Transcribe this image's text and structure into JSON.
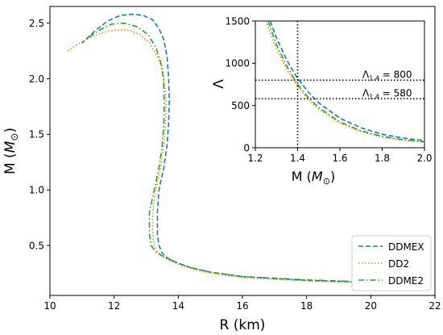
{
  "chart_data": [
    {
      "type": "line",
      "xlabel": "R (km)",
      "ylabel": "M (M⊙)",
      "ylabel_parts": {
        "prefix": "M (",
        "var": "M",
        "sub": "⊙",
        "suffix": ")"
      },
      "xlim": [
        10,
        22
      ],
      "ylim": [
        0.05,
        2.65
      ],
      "xticks": [
        10,
        12,
        14,
        16,
        18,
        20,
        22
      ],
      "yticks": [
        0.5,
        1.0,
        1.5,
        2.0,
        2.5
      ],
      "xtick_labels": [
        "10",
        "12",
        "14",
        "16",
        "18",
        "20",
        "22"
      ],
      "ytick_labels": [
        "0.5",
        "1.0",
        "1.5",
        "2.0",
        "2.5"
      ],
      "grid": false,
      "legend": {
        "placement": "bottom-right",
        "entries": [
          "DDMEX",
          "DD2",
          "DDME2"
        ]
      },
      "series": [
        {
          "name": "DDMEX",
          "color": "#1f77b4",
          "dash": "dashed",
          "x": [
            20.0,
            18.0,
            16.0,
            15.0,
            14.4,
            14.0,
            13.7,
            13.5,
            13.4,
            13.35,
            13.35,
            13.4,
            13.55,
            13.65,
            13.7,
            13.72,
            13.7,
            13.65,
            13.55,
            13.4,
            13.2,
            12.9,
            12.6,
            12.2,
            11.8,
            11.4,
            11.0
          ],
          "y": [
            0.17,
            0.185,
            0.22,
            0.26,
            0.3,
            0.34,
            0.38,
            0.43,
            0.5,
            0.6,
            0.8,
            1.0,
            1.2,
            1.4,
            1.6,
            1.8,
            2.0,
            2.2,
            2.35,
            2.45,
            2.53,
            2.57,
            2.58,
            2.57,
            2.52,
            2.43,
            2.32
          ]
        },
        {
          "name": "DD2",
          "color": "#ff7f0e",
          "dash": "dotted",
          "x": [
            20.0,
            18.0,
            16.0,
            15.0,
            14.4,
            14.0,
            13.6,
            13.35,
            13.25,
            13.2,
            13.2,
            13.3,
            13.45,
            13.55,
            13.6,
            13.62,
            13.58,
            13.5,
            13.35,
            13.1,
            12.8,
            12.4,
            12.0,
            11.6,
            11.2,
            10.8,
            10.55
          ],
          "y": [
            0.16,
            0.18,
            0.21,
            0.25,
            0.29,
            0.33,
            0.38,
            0.44,
            0.5,
            0.6,
            0.8,
            1.0,
            1.2,
            1.4,
            1.6,
            1.8,
            1.95,
            2.1,
            2.2,
            2.32,
            2.4,
            2.44,
            2.44,
            2.41,
            2.36,
            2.3,
            2.25
          ]
        },
        {
          "name": "DDME2",
          "color": "#2ca02c",
          "dash": "dashdot",
          "x": [
            20.0,
            18.0,
            16.0,
            15.0,
            14.4,
            14.0,
            13.6,
            13.3,
            13.15,
            13.1,
            13.1,
            13.25,
            13.4,
            13.5,
            13.55,
            13.56,
            13.54,
            13.45,
            13.3,
            13.05,
            12.7,
            12.3,
            11.9,
            11.5,
            11.1
          ],
          "y": [
            0.17,
            0.19,
            0.22,
            0.26,
            0.3,
            0.34,
            0.39,
            0.44,
            0.5,
            0.6,
            0.8,
            1.0,
            1.2,
            1.4,
            1.6,
            1.8,
            2.0,
            2.15,
            2.28,
            2.4,
            2.47,
            2.5,
            2.49,
            2.43,
            2.35
          ]
        }
      ]
    },
    {
      "type": "line",
      "xlabel": "M (M⊙)",
      "xlabel_parts": {
        "prefix": "M (",
        "var": "M",
        "sub": "⊙",
        "suffix": ")"
      },
      "ylabel": "Λ",
      "xlim": [
        1.2,
        2.0
      ],
      "ylim": [
        0,
        1500
      ],
      "xticks": [
        1.2,
        1.4,
        1.6,
        1.8,
        2.0
      ],
      "yticks": [
        0,
        500,
        1000,
        1500
      ],
      "xtick_labels": [
        "1.2",
        "1.4",
        "1.6",
        "1.8",
        "2.0"
      ],
      "ytick_labels": [
        "0",
        "500",
        "1000",
        "1500"
      ],
      "grid": false,
      "reference_lines": [
        {
          "orientation": "vertical",
          "value": 1.4
        },
        {
          "orientation": "horizontal",
          "value": 800,
          "label": "Λ1.4 = 800",
          "label_sym": "Λ",
          "label_sub": "1.4",
          "label_rest": " = 800"
        },
        {
          "orientation": "horizontal",
          "value": 580,
          "label": "Λ1.4 = 580",
          "label_sym": "Λ",
          "label_sub": "1.4",
          "label_rest": " = 580"
        }
      ],
      "series": [
        {
          "name": "DDMEX",
          "color": "#1f77b4",
          "dash": "dashed",
          "x": [
            1.27,
            1.3,
            1.35,
            1.4,
            1.45,
            1.5,
            1.6,
            1.7,
            1.8,
            1.9,
            2.0
          ],
          "y": [
            1500,
            1300,
            1030,
            820,
            660,
            530,
            350,
            235,
            160,
            115,
            85
          ]
        },
        {
          "name": "DD2",
          "color": "#ff7f0e",
          "dash": "dotted",
          "x": [
            1.25,
            1.3,
            1.35,
            1.4,
            1.45,
            1.5,
            1.6,
            1.7,
            1.8,
            1.9,
            2.0
          ],
          "y": [
            1500,
            1170,
            920,
            720,
            570,
            455,
            290,
            190,
            125,
            90,
            65
          ]
        },
        {
          "name": "DDME2",
          "color": "#2ca02c",
          "dash": "dashdot",
          "x": [
            1.26,
            1.3,
            1.35,
            1.4,
            1.45,
            1.5,
            1.6,
            1.7,
            1.8,
            1.9,
            2.0
          ],
          "y": [
            1500,
            1220,
            960,
            750,
            595,
            475,
            305,
            200,
            135,
            95,
            70
          ]
        }
      ]
    }
  ]
}
